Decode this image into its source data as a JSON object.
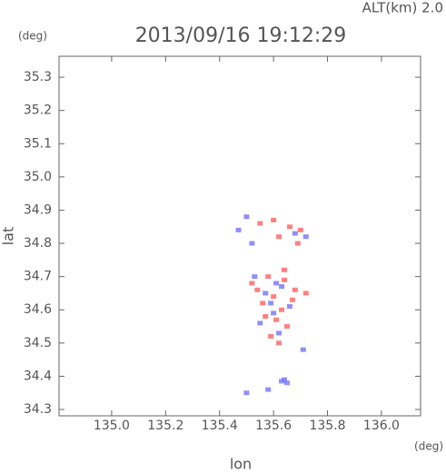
{
  "chart_data": {
    "type": "scatter",
    "title": "2013/09/16 19:12:29",
    "subtitle": "ALT(km)  2.0",
    "y_unit": "(deg)",
    "x_unit": "(deg)",
    "xlabel": "lon",
    "ylabel": "lat",
    "xlim": [
      134.805,
      136.145
    ],
    "ylim": [
      34.281,
      35.363
    ],
    "xticks": [
      {
        "value": 135.0,
        "label": "135.0"
      },
      135.2,
      135.4,
      135.6,
      135.8,
      {
        "value": 136.0,
        "label": "136.0"
      }
    ],
    "yticks": [
      34.3,
      34.4,
      34.5,
      34.6,
      34.7,
      34.8,
      34.9,
      {
        "value": 35.0,
        "label": "35.0"
      },
      35.1,
      35.2,
      35.3
    ],
    "grid": false,
    "series": [
      {
        "color": "#ff6a6a",
        "x": [
          135.55,
          135.6,
          135.62,
          135.66,
          135.7,
          135.52,
          135.58,
          135.64,
          135.68,
          135.6,
          135.56,
          135.63,
          135.67,
          135.61,
          135.65,
          135.59,
          135.62,
          135.72,
          135.69,
          135.57,
          135.54,
          135.64
        ],
        "y": [
          34.86,
          34.87,
          34.82,
          34.85,
          34.84,
          34.68,
          34.7,
          34.69,
          34.66,
          34.64,
          34.62,
          34.6,
          34.63,
          34.57,
          34.55,
          34.52,
          34.5,
          34.65,
          34.8,
          34.58,
          34.66,
          34.72
        ]
      },
      {
        "color": "#7b7bf5",
        "x": [
          135.5,
          135.47,
          135.52,
          135.68,
          135.72,
          135.53,
          135.57,
          135.63,
          135.66,
          135.6,
          135.55,
          135.62,
          135.71,
          135.64,
          135.63,
          135.65,
          135.58,
          135.5,
          135.59,
          135.61
        ],
        "y": [
          34.88,
          34.84,
          34.8,
          34.83,
          34.82,
          34.7,
          34.65,
          34.67,
          34.61,
          34.59,
          34.56,
          34.53,
          34.48,
          34.39,
          34.385,
          34.38,
          34.36,
          34.35,
          34.62,
          34.68
        ]
      }
    ]
  }
}
